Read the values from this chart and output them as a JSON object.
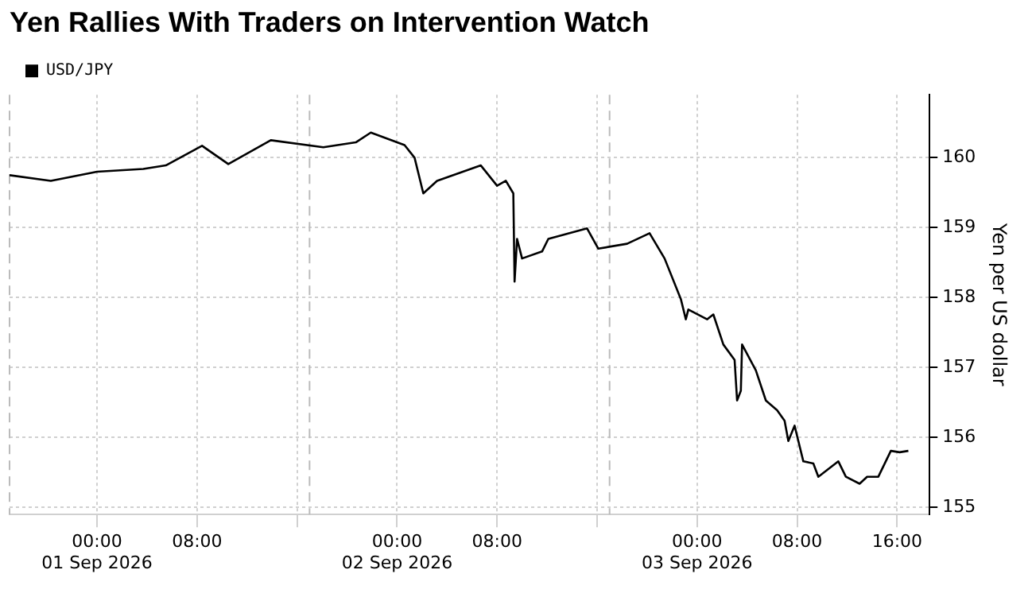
{
  "chart_data": {
    "type": "line",
    "title": "Yen Rallies With Traders on Intervention Watch",
    "ylabel": "Yen per US dollar",
    "series": [
      {
        "name": "USD/JPY",
        "color": "#000000",
        "x": [
          "2026-08-31T17:00",
          "2026-08-31T20:18",
          "2026-09-01T00:00",
          "2026-09-01T03:42",
          "2026-09-01T05:30",
          "2026-09-01T08:24",
          "2026-09-01T10:30",
          "2026-09-01T13:54",
          "2026-09-01T18:06",
          "2026-09-01T20:42",
          "2026-09-01T21:54",
          "2026-09-02T00:36",
          "2026-09-02T01:24",
          "2026-09-02T02:06",
          "2026-09-02T03:12",
          "2026-09-02T06:42",
          "2026-09-02T08:00",
          "2026-09-02T08:42",
          "2026-09-02T09:18",
          "2026-09-02T09:24",
          "2026-09-02T09:36",
          "2026-09-02T10:00",
          "2026-09-02T11:36",
          "2026-09-02T12:06",
          "2026-09-02T15:12",
          "2026-09-02T16:06",
          "2026-09-02T18:24",
          "2026-09-02T20:12",
          "2026-09-02T21:24",
          "2026-09-02T22:42",
          "2026-09-02T23:06",
          "2026-09-02T23:18",
          "2026-09-03T00:48",
          "2026-09-03T01:18",
          "2026-09-03T02:06",
          "2026-09-03T03:00",
          "2026-09-03T03:12",
          "2026-09-03T03:30",
          "2026-09-03T03:36",
          "2026-09-03T04:42",
          "2026-09-03T05:30",
          "2026-09-03T06:24",
          "2026-09-03T07:00",
          "2026-09-03T07:18",
          "2026-09-03T07:48",
          "2026-09-03T08:30",
          "2026-09-03T09:18",
          "2026-09-03T09:42",
          "2026-09-03T11:18",
          "2026-09-03T11:54",
          "2026-09-03T13:00",
          "2026-09-03T13:36",
          "2026-09-03T14:30",
          "2026-09-03T15:30",
          "2026-09-03T16:12",
          "2026-09-03T16:54"
        ],
        "values": [
          159.75,
          159.67,
          159.8,
          159.84,
          159.89,
          160.17,
          159.91,
          160.25,
          160.15,
          160.22,
          160.36,
          160.18,
          160.0,
          159.49,
          159.67,
          159.89,
          159.6,
          159.67,
          159.49,
          158.23,
          158.84,
          158.56,
          158.66,
          158.84,
          158.99,
          158.7,
          158.77,
          158.92,
          158.56,
          157.98,
          157.69,
          157.83,
          157.69,
          157.76,
          157.33,
          157.11,
          156.53,
          156.67,
          157.33,
          156.96,
          156.53,
          156.39,
          156.24,
          155.95,
          156.17,
          155.66,
          155.63,
          155.44,
          155.66,
          155.44,
          155.34,
          155.44,
          155.44,
          155.81,
          155.79,
          155.81
        ]
      }
    ],
    "xlim": [
      "2026-08-31T17:00",
      "2026-09-03T18:36"
    ],
    "ylim": [
      154.9,
      160.9
    ],
    "xticks": [
      {
        "value": "2026-09-01T00:00",
        "label": "00:00\n01 Sep 2026"
      },
      {
        "value": "2026-09-01T08:00",
        "label": "08:00"
      },
      {
        "value": "2026-09-01T16:00",
        "label": null
      },
      {
        "value": "2026-09-02T00:00",
        "label": "00:00\n02 Sep 2026"
      },
      {
        "value": "2026-09-02T08:00",
        "label": "08:00"
      },
      {
        "value": "2026-09-02T16:00",
        "label": null
      },
      {
        "value": "2026-09-03T00:00",
        "label": "00:00\n03 Sep 2026"
      },
      {
        "value": "2026-09-03T08:00",
        "label": "08:00"
      },
      {
        "value": "2026-09-03T16:00",
        "label": "16:00"
      }
    ],
    "yticks": [
      155,
      156,
      157,
      158,
      159,
      160
    ],
    "ref_lines": [
      {
        "axis": "x",
        "value": "2026-08-31T17:00",
        "line_style": "dashed",
        "color": "#bbbbbb"
      },
      {
        "axis": "x",
        "value": "2026-09-01T17:00",
        "line_style": "dashed",
        "color": "#bbbbbb"
      },
      {
        "axis": "x",
        "value": "2026-09-02T17:00",
        "line_style": "dashed",
        "color": "#bbbbbb"
      }
    ],
    "grid": true,
    "legend": "top left",
    "marker": "none",
    "line_style": "solid"
  }
}
